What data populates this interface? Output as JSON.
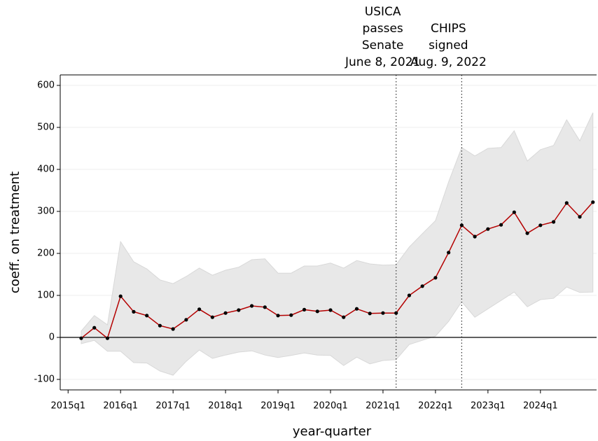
{
  "chart_data": {
    "type": "line",
    "x_label": "year-quarter",
    "y_label": "coeff. on treatment",
    "x": [
      2015.25,
      2015.5,
      2015.75,
      2016.0,
      2016.25,
      2016.5,
      2016.75,
      2017.0,
      2017.25,
      2017.5,
      2017.75,
      2018.0,
      2018.25,
      2018.5,
      2018.75,
      2019.0,
      2019.25,
      2019.5,
      2019.75,
      2020.0,
      2020.25,
      2020.5,
      2020.75,
      2021.0,
      2021.25,
      2021.5,
      2021.75,
      2022.0,
      2022.25,
      2022.5,
      2022.75,
      2023.0,
      2023.25,
      2023.5,
      2023.75,
      2024.0,
      2024.25,
      2024.5,
      2024.75,
      2025.0
    ],
    "values": [
      -2,
      23,
      -2,
      98,
      61,
      52,
      28,
      20,
      42,
      67,
      48,
      58,
      65,
      75,
      72,
      52,
      53,
      66,
      62,
      65,
      48,
      68,
      57,
      58,
      58,
      100,
      122,
      142,
      202,
      267,
      240,
      258,
      268,
      298,
      248,
      267,
      275,
      320,
      287,
      322
    ],
    "ci_upper": [
      15,
      52,
      30,
      228,
      180,
      163,
      137,
      128,
      145,
      165,
      148,
      160,
      167,
      185,
      187,
      153,
      153,
      170,
      170,
      177,
      165,
      183,
      175,
      172,
      173,
      215,
      247,
      278,
      370,
      452,
      432,
      450,
      452,
      492,
      420,
      447,
      457,
      518,
      468,
      535
    ],
    "ci_lower": [
      -15,
      -7,
      -33,
      -33,
      -60,
      -61,
      -80,
      -90,
      -57,
      -30,
      -50,
      -42,
      -35,
      -32,
      -42,
      -48,
      -43,
      -37,
      -42,
      -43,
      -67,
      -47,
      -63,
      -55,
      -53,
      -17,
      -7,
      3,
      38,
      85,
      48,
      68,
      88,
      108,
      73,
      90,
      93,
      120,
      107,
      108
    ],
    "color": "#b40000",
    "band_color": "#e8e8e8",
    "xlim": [
      2014.85,
      2025.07
    ],
    "ylim": [
      -125,
      625
    ],
    "xticks": [
      {
        "value": 2015,
        "label": "2015q1"
      },
      {
        "value": 2016,
        "label": "2016q1"
      },
      {
        "value": 2017,
        "label": "2017q1"
      },
      {
        "value": 2018,
        "label": "2018q1"
      },
      {
        "value": 2019,
        "label": "2019q1"
      },
      {
        "value": 2020,
        "label": "2020q1"
      },
      {
        "value": 2021,
        "label": "2021q1"
      },
      {
        "value": 2022,
        "label": "2022q1"
      },
      {
        "value": 2023,
        "label": "2023q1"
      },
      {
        "value": 2024,
        "label": "2024q1"
      }
    ],
    "yticks": [
      -100,
      0,
      100,
      200,
      300,
      400,
      500,
      600
    ],
    "grid": true,
    "annotations": [
      {
        "x": 2021.25,
        "lines": [
          "USICA",
          "passes",
          "Senate",
          "June 8, 2021"
        ]
      },
      {
        "x": 2022.5,
        "lines": [
          "CHIPS",
          "signed",
          "Aug. 9, 2022"
        ]
      }
    ]
  }
}
